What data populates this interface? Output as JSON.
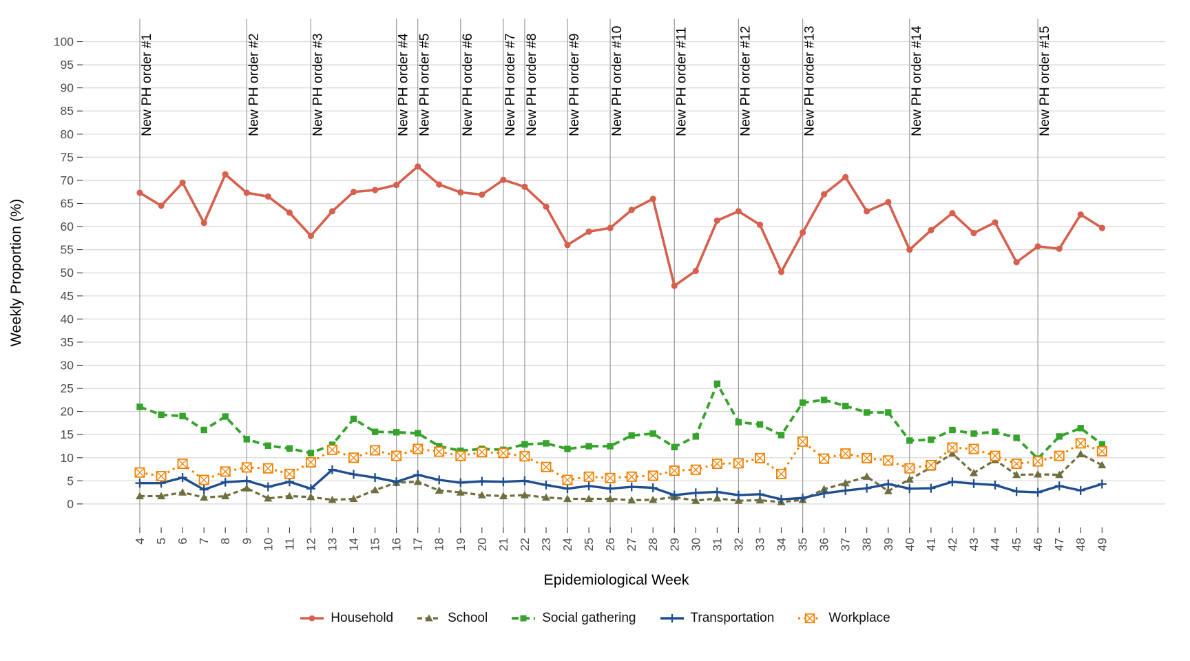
{
  "chart_data": {
    "type": "line",
    "title": "",
    "xlabel": "Epidemiological Week",
    "ylabel": "Weekly Proportion (%)",
    "x": [
      4,
      5,
      6,
      7,
      8,
      9,
      10,
      11,
      12,
      13,
      14,
      15,
      16,
      17,
      18,
      19,
      20,
      21,
      22,
      23,
      24,
      25,
      26,
      27,
      28,
      29,
      30,
      31,
      32,
      33,
      34,
      35,
      36,
      37,
      38,
      39,
      40,
      41,
      42,
      43,
      44,
      45,
      46,
      47,
      48,
      49
    ],
    "ylim": [
      0,
      100
    ],
    "yticks": [
      0,
      5,
      10,
      15,
      20,
      25,
      30,
      35,
      40,
      45,
      50,
      55,
      60,
      65,
      70,
      75,
      80,
      85,
      90,
      95,
      100
    ],
    "grid": "horizontal-only",
    "legend_position": "bottom",
    "axis_text_color": "#4d4d4d",
    "gridline_color": "#d6d6d6",
    "annotation_line_color": "#9a9a9a",
    "series": [
      {
        "name": "Household",
        "color": "#d6604d",
        "marker": "circle",
        "linestyle": "solid",
        "values": [
          67.3,
          64.5,
          69.5,
          60.8,
          71.3,
          67.3,
          66.5,
          63,
          58,
          63.3,
          67.5,
          67.9,
          69,
          73,
          69.1,
          67.4,
          66.9,
          70.1,
          68.6,
          64.3,
          56,
          58.9,
          59.7,
          63.6,
          66,
          47.2,
          50.4,
          61.3,
          63.3,
          60.4,
          50.2,
          58.7,
          67,
          70.7,
          63.3,
          65.3,
          55,
          59.2,
          62.9,
          58.6,
          60.9,
          52.3,
          55.7,
          55.2,
          62.6,
          59.7
        ]
      },
      {
        "name": "School",
        "color": "#6e6e3f",
        "marker": "triangle",
        "linestyle": "dashed",
        "values": [
          1.7,
          1.7,
          2.5,
          1.4,
          1.7,
          3.4,
          1.2,
          1.7,
          1.5,
          0.9,
          1.1,
          3.0,
          4.6,
          4.8,
          2.9,
          2.5,
          1.9,
          1.7,
          1.9,
          1.4,
          1.1,
          1.1,
          1.1,
          0.8,
          0.9,
          1.5,
          0.7,
          1.2,
          0.7,
          0.8,
          0.4,
          0.9,
          3.2,
          4.5,
          5.9,
          2.8,
          5.3,
          7.9,
          10.9,
          6.7,
          9.5,
          6.3,
          6.4,
          6.3,
          10.8,
          8.4
        ]
      },
      {
        "name": "Social gathering",
        "color": "#35a32c",
        "marker": "square",
        "linestyle": "dashed",
        "values": [
          21,
          19.3,
          19,
          16,
          18.9,
          14,
          12.6,
          12,
          11,
          12.8,
          18.4,
          15.6,
          15.5,
          15.3,
          12.5,
          11.5,
          11.9,
          11.7,
          12.9,
          13.1,
          11.9,
          12.5,
          12.5,
          14.8,
          15.2,
          12.3,
          14.6,
          26,
          17.7,
          17.2,
          14.9,
          21.9,
          22.5,
          21.2,
          19.8,
          19.8,
          13.7,
          13.9,
          16,
          15.2,
          15.6,
          14.3,
          9.8,
          14.6,
          16.4,
          12.9
        ]
      },
      {
        "name": "Transportation",
        "color": "#1f4e8f",
        "marker": "plus",
        "linestyle": "solid",
        "values": [
          4.5,
          4.5,
          5.7,
          3.1,
          4.7,
          5.0,
          3.7,
          4.8,
          3.3,
          7.4,
          6.4,
          5.7,
          4.8,
          6.3,
          5.2,
          4.6,
          4.9,
          4.8,
          5.0,
          4.1,
          3.3,
          3.9,
          3.3,
          3.7,
          3.5,
          1.9,
          2.4,
          2.6,
          1.9,
          2.1,
          1.0,
          1.3,
          2.3,
          2.9,
          3.4,
          4.3,
          3.3,
          3.4,
          4.8,
          4.4,
          4.1,
          2.7,
          2.5,
          3.9,
          2.9,
          4.3
        ]
      },
      {
        "name": "Workplace",
        "color": "#f08100",
        "marker": "boxed-x",
        "linestyle": "dotted",
        "values": [
          6.8,
          6.0,
          8.7,
          5.2,
          7.0,
          7.9,
          7.7,
          6.5,
          9.0,
          11.7,
          10.0,
          11.6,
          10.4,
          11.9,
          11.3,
          10.4,
          11.2,
          11.0,
          10.3,
          8.0,
          5.2,
          5.9,
          5.6,
          5.9,
          6.1,
          7.2,
          7.4,
          8.7,
          8.8,
          9.9,
          6.5,
          13.5,
          9.8,
          10.9,
          9.9,
          9.4,
          7.7,
          8.4,
          12.2,
          11.9,
          10.4,
          8.7,
          9.2,
          10.4,
          13.1,
          11.4
        ]
      }
    ],
    "annotations": [
      {
        "label": "New PH order #1",
        "week": 4
      },
      {
        "label": "New PH order #2",
        "week": 9
      },
      {
        "label": "New PH order #3",
        "week": 12
      },
      {
        "label": "New PH order #4",
        "week": 16
      },
      {
        "label": "New PH order #5",
        "week": 17
      },
      {
        "label": "New PH order #6",
        "week": 19
      },
      {
        "label": "New PH order #7",
        "week": 21
      },
      {
        "label": "New PH order #8",
        "week": 22
      },
      {
        "label": "New PH order #9",
        "week": 24
      },
      {
        "label": "New PH order #10",
        "week": 26
      },
      {
        "label": "New PH order #11",
        "week": 29
      },
      {
        "label": "New PH order #12",
        "week": 32
      },
      {
        "label": "New PH order #13",
        "week": 35
      },
      {
        "label": "New PH order #14",
        "week": 40
      },
      {
        "label": "New PH order #15",
        "week": 46
      }
    ]
  }
}
